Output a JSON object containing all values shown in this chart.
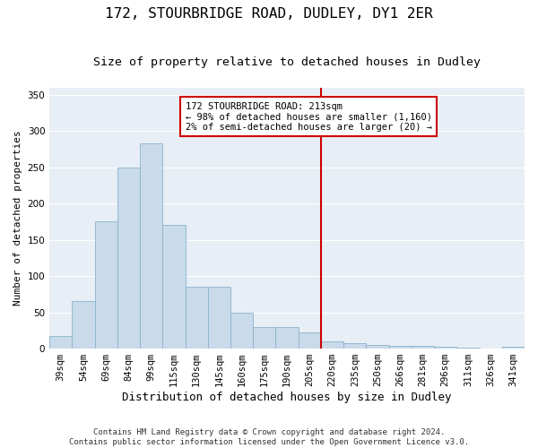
{
  "title": "172, STOURBRIDGE ROAD, DUDLEY, DY1 2ER",
  "subtitle": "Size of property relative to detached houses in Dudley",
  "xlabel": "Distribution of detached houses by size in Dudley",
  "ylabel": "Number of detached properties",
  "categories": [
    "39sqm",
    "54sqm",
    "69sqm",
    "84sqm",
    "99sqm",
    "115sqm",
    "130sqm",
    "145sqm",
    "160sqm",
    "175sqm",
    "190sqm",
    "205sqm",
    "220sqm",
    "235sqm",
    "250sqm",
    "266sqm",
    "281sqm",
    "296sqm",
    "311sqm",
    "326sqm",
    "341sqm"
  ],
  "values": [
    18,
    65,
    175,
    250,
    283,
    170,
    85,
    85,
    50,
    30,
    30,
    22,
    10,
    8,
    5,
    4,
    4,
    3,
    1,
    0,
    2
  ],
  "bar_color": "#c9daea",
  "bar_edge_color": "#8ab4cc",
  "vline_color": "#cc0000",
  "annotation_text": "172 STOURBRIDGE ROAD: 213sqm\n← 98% of detached houses are smaller (1,160)\n2% of semi-detached houses are larger (20) →",
  "annotation_box_color": "#cc0000",
  "ylim": [
    0,
    360
  ],
  "yticks": [
    0,
    50,
    100,
    150,
    200,
    250,
    300,
    350
  ],
  "plot_bg_color": "#e8eef5",
  "footer_line1": "Contains HM Land Registry data © Crown copyright and database right 2024.",
  "footer_line2": "Contains public sector information licensed under the Open Government Licence v3.0.",
  "title_fontsize": 11.5,
  "subtitle_fontsize": 9.5,
  "xlabel_fontsize": 9,
  "ylabel_fontsize": 8,
  "tick_fontsize": 7.5,
  "annot_fontsize": 7.5,
  "footer_fontsize": 6.5
}
